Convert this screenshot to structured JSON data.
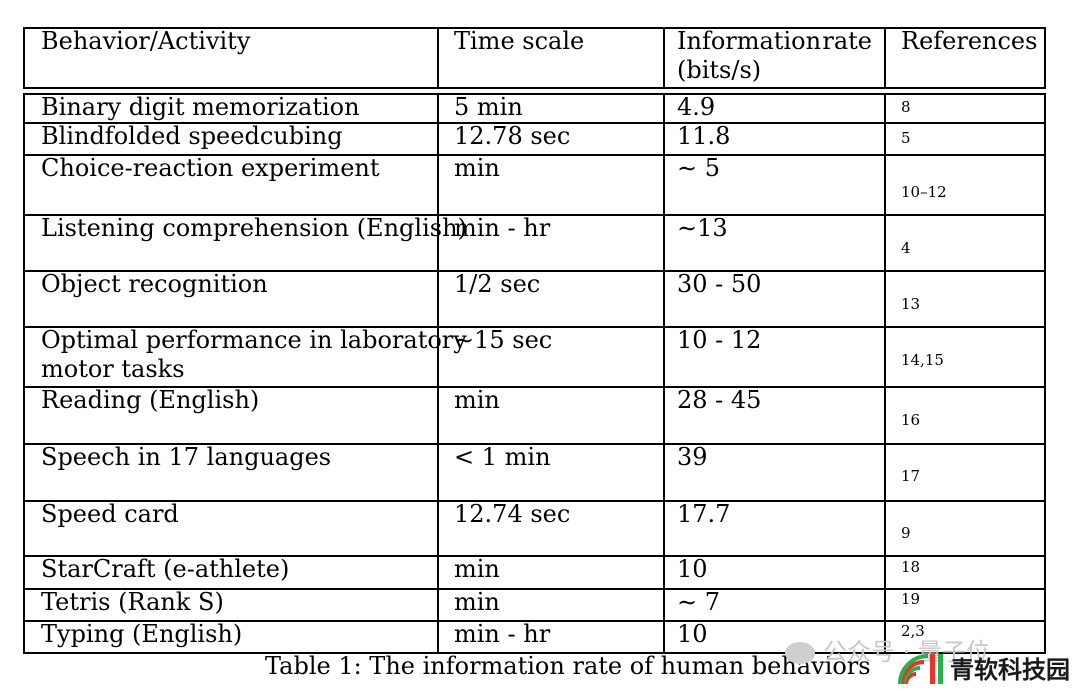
{
  "table": {
    "headers": {
      "behavior": "Behavior/Activity",
      "time_scale": "Time scale",
      "info_rate_1a": "Information",
      "info_rate_1b": "rate",
      "info_rate_2": "(bits/s)",
      "references": "References"
    },
    "rows": [
      {
        "behavior": "Binary digit memorization",
        "time_scale": "5 min",
        "rate": "4.9",
        "ref": "8"
      },
      {
        "behavior": "Blindfolded speedcubing",
        "time_scale": "12.78 sec",
        "rate": "11.8",
        "ref": "5"
      },
      {
        "behavior": "Choice-reaction experiment",
        "time_scale": "min",
        "rate": "∼ 5",
        "ref": "10–12"
      },
      {
        "behavior": "Listening comprehension (English)",
        "time_scale": "min - hr",
        "rate": "∼13",
        "ref": "4"
      },
      {
        "behavior": "Object recognition",
        "time_scale": "1/2 sec",
        "rate": "30 - 50",
        "ref": "13"
      },
      {
        "behavior": "Optimal performance in laboratory",
        "behavior_2": "motor tasks",
        "time_scale": "∼15 sec",
        "rate": "10 - 12",
        "ref": "14,15"
      },
      {
        "behavior": "Reading (English)",
        "time_scale": "min",
        "rate": "28 - 45",
        "ref": "16"
      },
      {
        "behavior": "Speech in 17 languages",
        "time_scale": "< 1 min",
        "rate": "39",
        "ref": "17"
      },
      {
        "behavior": "Speed card",
        "time_scale": "12.74 sec",
        "rate": "17.7",
        "ref": "9"
      },
      {
        "behavior": "StarCraft (e-athlete)",
        "time_scale": "min",
        "rate": "10",
        "ref": "18"
      },
      {
        "behavior": "Tetris (Rank S)",
        "time_scale": "min",
        "rate": "∼ 7",
        "ref": "19"
      },
      {
        "behavior": "Typing (English)",
        "time_scale": "min - hr",
        "rate": "10",
        "ref": "2,3"
      }
    ]
  },
  "caption": "Table 1: The information rate of human behaviors",
  "watermark": {
    "faint_text": "公众号 · 量子位",
    "logo_text": "青软科技园",
    "logo_icon": "signal-arcs-icon",
    "colors": {
      "red": "#e5342b",
      "green": "#2eae4a"
    }
  }
}
